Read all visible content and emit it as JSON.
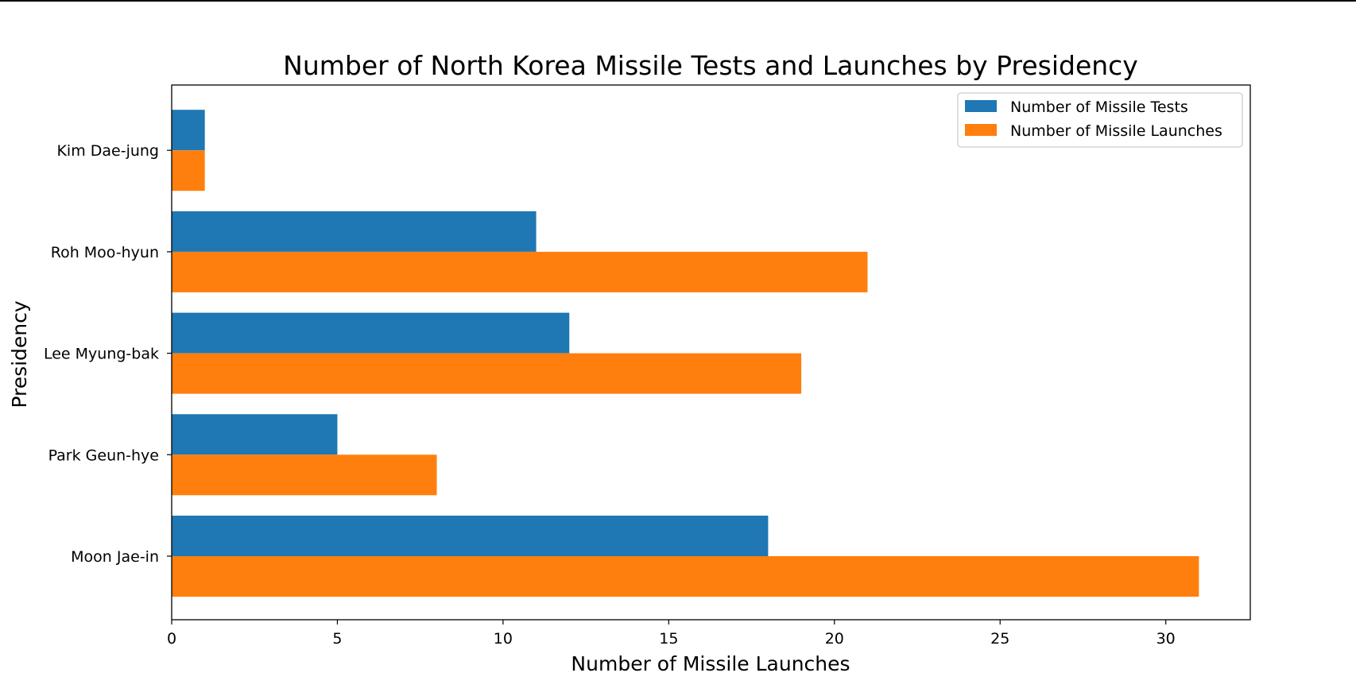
{
  "chart_data": {
    "type": "bar",
    "orientation": "horizontal",
    "title": "Number of North Korea Missile Tests and Launches by Presidency",
    "xlabel": "Number of Missile Launches",
    "ylabel": "Presidency",
    "categories": [
      "Moon Jae-in",
      "Park Geun-hye",
      "Lee Myung-bak",
      "Roh Moo-hyun",
      "Kim Dae-jung"
    ],
    "series": [
      {
        "name": "Number of Missile Tests",
        "color": "#1f77b4",
        "values": [
          18,
          5,
          12,
          11,
          1
        ]
      },
      {
        "name": "Number of Missile Launches",
        "color": "#ff7f0e",
        "values": [
          31,
          8,
          19,
          21,
          1
        ]
      }
    ],
    "xlim": [
      0,
      32.55
    ],
    "xticks": [
      "0",
      "5",
      "10",
      "15",
      "20",
      "25",
      "30"
    ],
    "grid": false,
    "legend_position": "top-right"
  }
}
